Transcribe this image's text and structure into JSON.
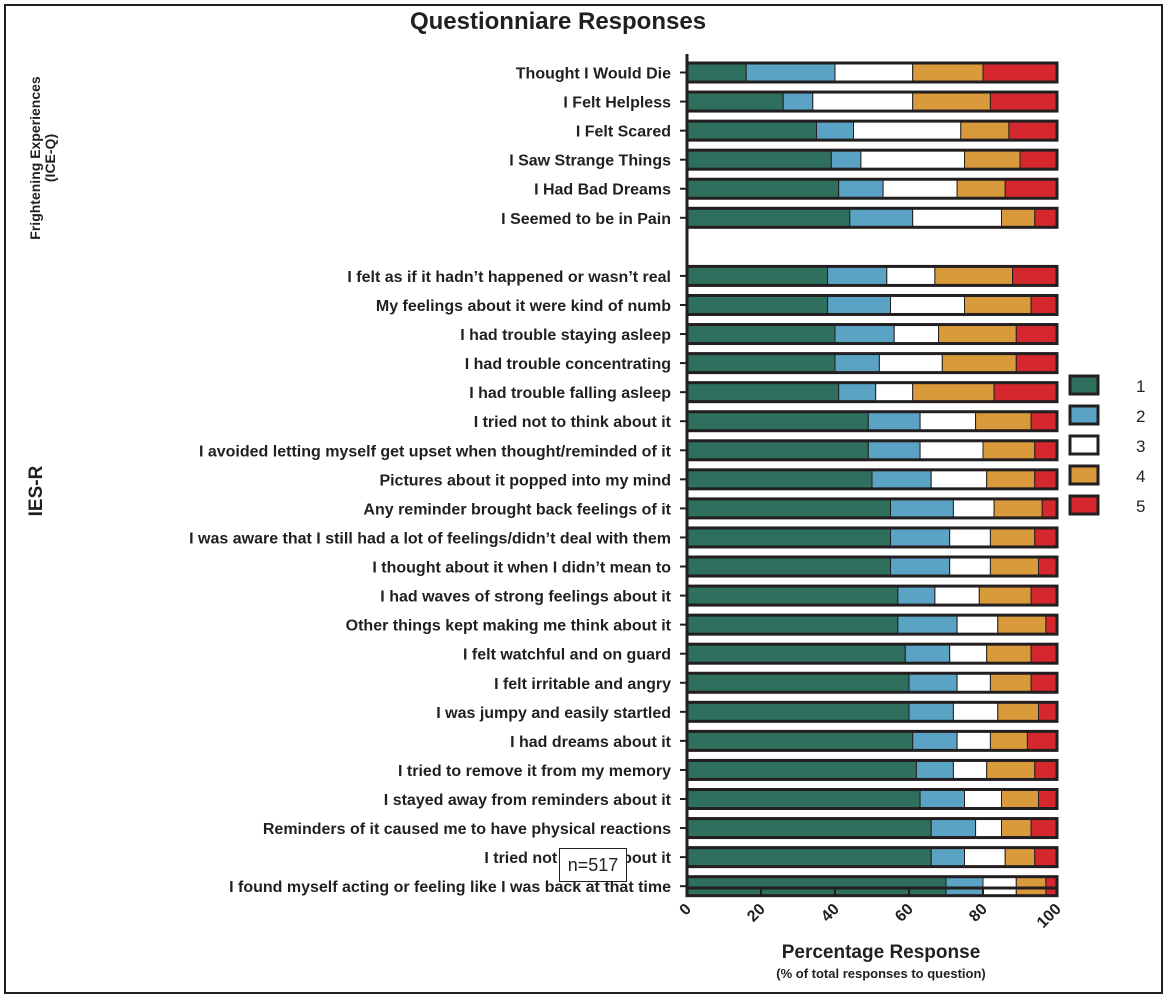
{
  "chart_data": {
    "type": "bar",
    "orientation": "horizontal",
    "stacked": true,
    "title": "Questionniare Responses",
    "xlabel": "Percentage Response",
    "xlabel_sub": "(% of total responses to question)",
    "xlim": [
      0,
      100
    ],
    "xticks": [
      "0",
      "20",
      "40",
      "60",
      "80",
      "100"
    ],
    "legend_position": "right",
    "annotation": "n=517",
    "groups": [
      {
        "label": "Frightening Experiences\n(ICE-Q)",
        "label_lines": [
          "Frightening Experiences",
          "(ICE-Q)"
        ],
        "first_index": 0,
        "last_index": 5
      },
      {
        "label": "IES-R",
        "label_lines": [
          "IES-R"
        ],
        "first_index": 6,
        "last_index": 27
      }
    ],
    "categories": [
      "Thought I Would Die",
      "I Felt Helpless",
      "I Felt Scared",
      "I Saw Strange Things",
      "I Had Bad Dreams",
      "I Seemed to be in Pain",
      "I felt as if it hadn’t happened or wasn’t real",
      "My feelings about it were kind of numb",
      "I had trouble staying asleep ",
      "I had trouble concentrating",
      "I had trouble falling asleep",
      "I tried not to think about it",
      "I avoided letting myself get upset when thought/reminded of it",
      "Pictures about it popped into my mind",
      "Any reminder brought back feelings of it",
      "I was aware that I still had a lot of feelings/didn’t deal with them",
      "I thought about it when I didn’t mean to",
      "I had waves of strong feelings about it ",
      "Other things kept making me think about it",
      "I felt watchful and on guard",
      "I felt irritable and angry",
      "I was jumpy and easily startled",
      "I had dreams about it ",
      "I tried to remove it from my memory",
      "I stayed away from reminders about it ",
      "Reminders of it caused me to have physical reactions",
      "I tried not to talk about it",
      "I found myself acting or feeling like I was back at that time"
    ],
    "series": [
      {
        "name": "1",
        "color": "#2e6f5e",
        "values": [
          16,
          26,
          35,
          39,
          41,
          44,
          38,
          38,
          40,
          40,
          41,
          49,
          49,
          50,
          55,
          55,
          55,
          57,
          57,
          59,
          60,
          60,
          61,
          62,
          63,
          66,
          66,
          70
        ]
      },
      {
        "name": "2",
        "color": "#5aa3c4",
        "values": [
          24,
          8,
          10,
          8,
          12,
          17,
          16,
          17,
          16,
          12,
          10,
          14,
          14,
          16,
          17,
          16,
          16,
          10,
          16,
          12,
          13,
          12,
          12,
          10,
          12,
          12,
          9,
          10
        ]
      },
      {
        "name": "3",
        "color": "#ffffff",
        "values": [
          21,
          27,
          29,
          28,
          20,
          24,
          13,
          20,
          12,
          17,
          10,
          15,
          17,
          15,
          11,
          11,
          11,
          12,
          11,
          10,
          9,
          12,
          9,
          9,
          10,
          7,
          11,
          9
        ]
      },
      {
        "name": "4",
        "color": "#d99a3b",
        "values": [
          19,
          21,
          13,
          15,
          13,
          9,
          21,
          18,
          21,
          20,
          22,
          15,
          14,
          13,
          13,
          12,
          13,
          14,
          13,
          12,
          11,
          11,
          10,
          13,
          10,
          8,
          8,
          8
        ]
      },
      {
        "name": "5",
        "color": "#d4272e",
        "values": [
          20,
          18,
          13,
          10,
          14,
          6,
          12,
          7,
          11,
          11,
          17,
          7,
          6,
          6,
          4,
          6,
          5,
          7,
          3,
          7,
          7,
          5,
          8,
          6,
          5,
          7,
          6,
          3
        ]
      }
    ]
  }
}
